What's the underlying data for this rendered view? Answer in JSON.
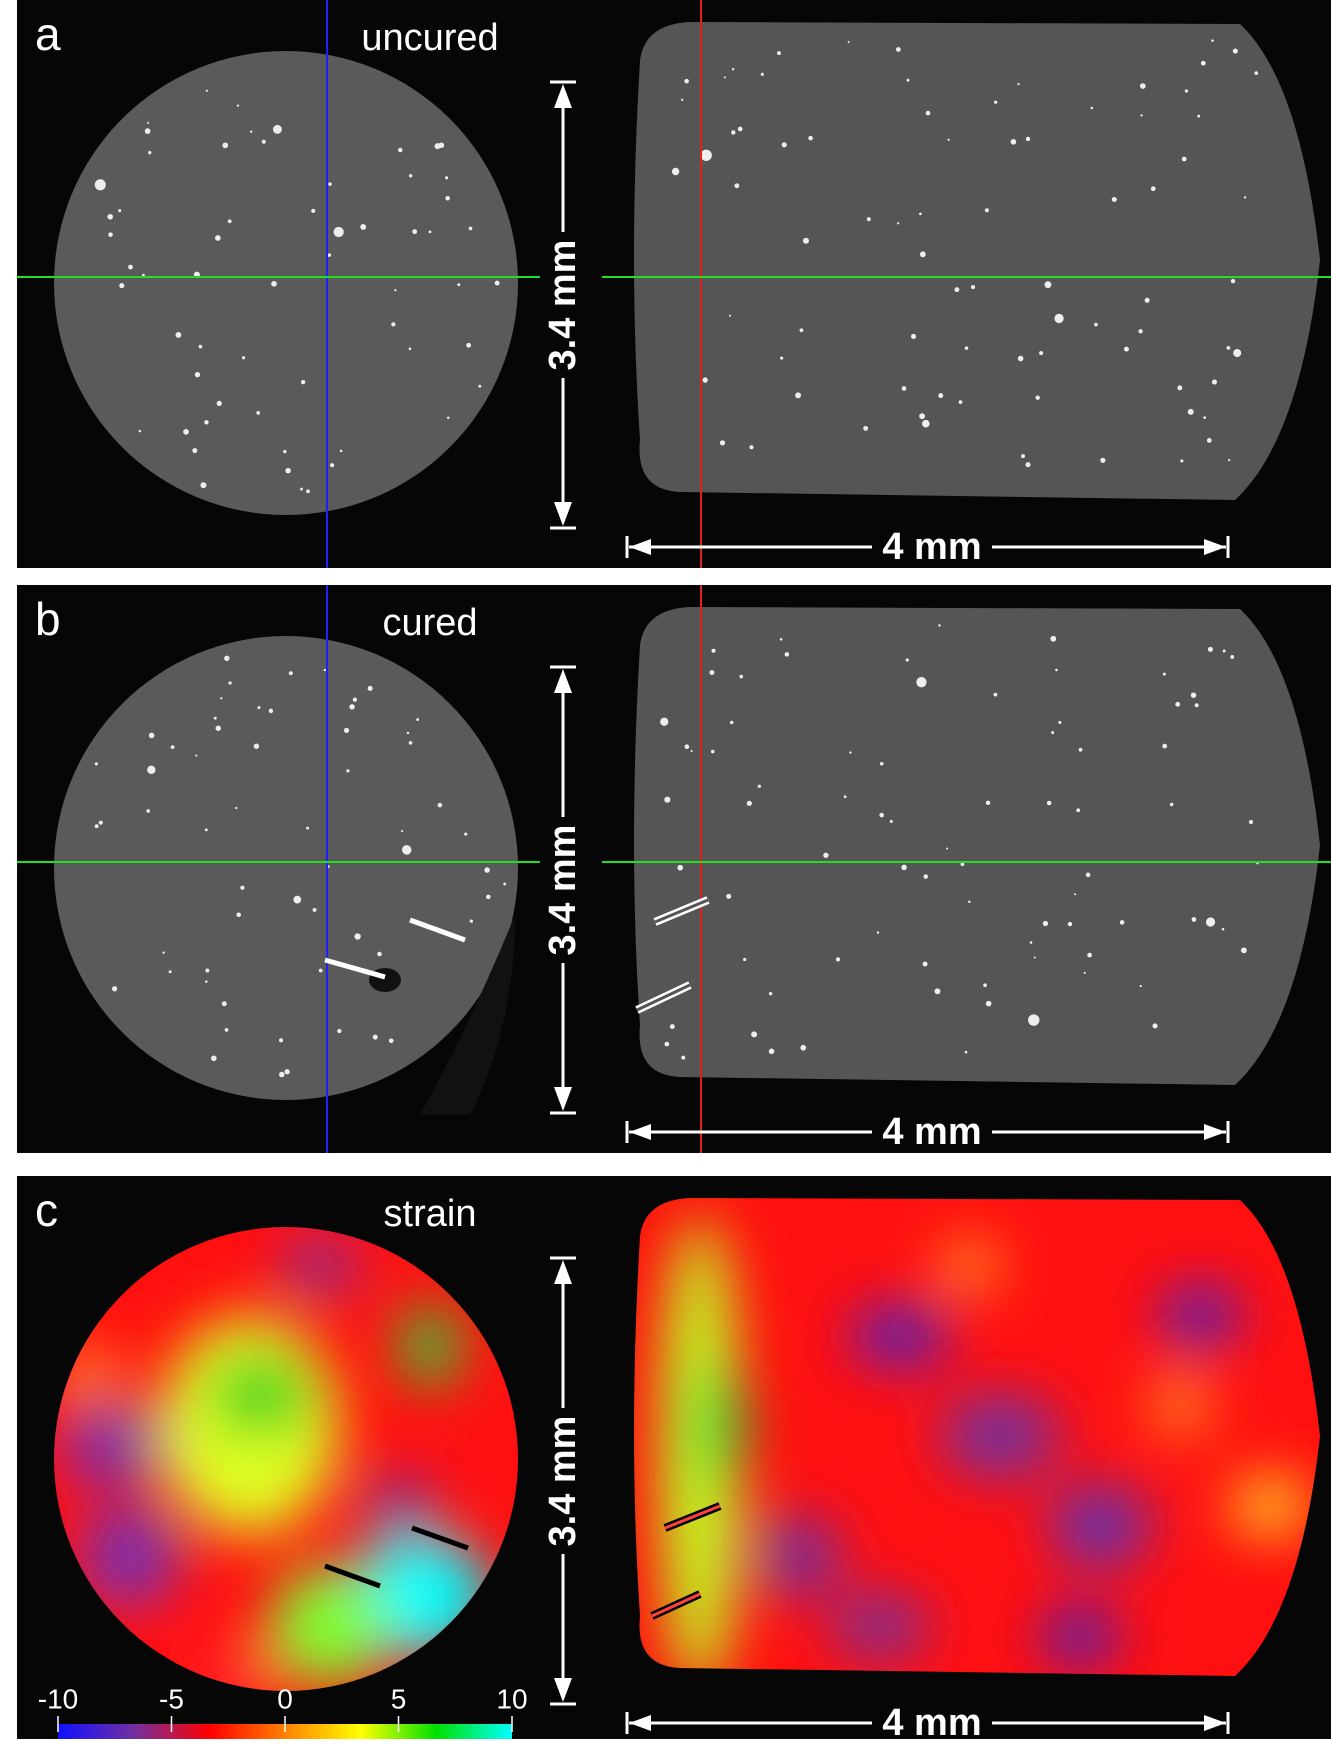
{
  "panels": [
    {
      "label": "a",
      "title": "uncured",
      "height_label": "3.4 mm",
      "width_label": "4 mm"
    },
    {
      "label": "b",
      "title": "cured",
      "height_label": "3.4 mm",
      "width_label": "4 mm"
    },
    {
      "label": "c",
      "title": "strain",
      "height_label": "3.4 mm",
      "width_label": "4 mm"
    }
  ],
  "colorbar": {
    "lim": [
      -10,
      10
    ],
    "ticks": [
      -10,
      -5,
      0,
      5,
      10
    ],
    "colors": [
      "#1010ff",
      "#7030a0",
      "#ff0000",
      "#ff8000",
      "#ffff00",
      "#00e000",
      "#00ffff"
    ]
  }
}
